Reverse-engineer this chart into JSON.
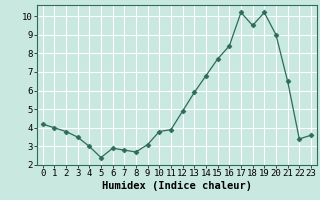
{
  "x": [
    0,
    1,
    2,
    3,
    4,
    5,
    6,
    7,
    8,
    9,
    10,
    11,
    12,
    13,
    14,
    15,
    16,
    17,
    18,
    19,
    20,
    21,
    22,
    23
  ],
  "y": [
    4.2,
    4.0,
    3.8,
    3.5,
    3.0,
    2.4,
    2.9,
    2.8,
    2.7,
    3.1,
    3.8,
    3.9,
    4.9,
    5.9,
    6.8,
    7.7,
    8.4,
    10.2,
    9.5,
    10.2,
    9.0,
    6.5,
    3.4,
    3.6
  ],
  "xlabel": "Humidex (Indice chaleur)",
  "xlim": [
    -0.5,
    23.5
  ],
  "ylim": [
    2,
    10.6
  ],
  "yticks": [
    2,
    3,
    4,
    5,
    6,
    7,
    8,
    9,
    10
  ],
  "xtick_labels": [
    "0",
    "1",
    "2",
    "3",
    "4",
    "5",
    "6",
    "7",
    "8",
    "9",
    "10",
    "11",
    "12",
    "13",
    "14",
    "15",
    "16",
    "17",
    "18",
    "19",
    "20",
    "21",
    "22",
    "23"
  ],
  "line_color": "#2d6b5a",
  "marker_color": "#2d6b5a",
  "bg_color": "#c8e8e0",
  "grid_color": "#ffffff",
  "tick_label_fontsize": 6.5,
  "xlabel_fontsize": 7.5
}
